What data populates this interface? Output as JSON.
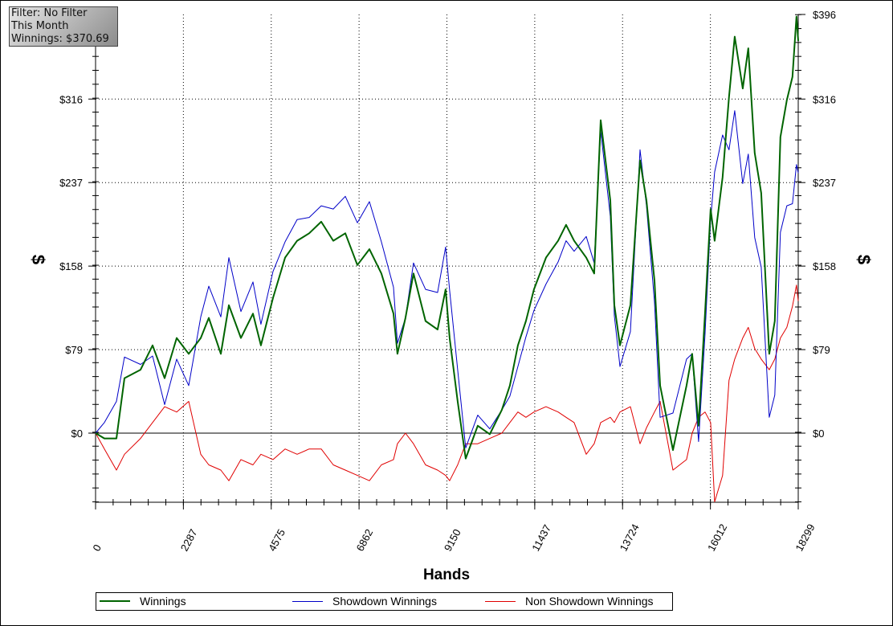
{
  "info_box": {
    "filter": "Filter: No Filter",
    "period": "This Month",
    "winnings": "Winnings: $370.69"
  },
  "chart_data": {
    "type": "line",
    "xlabel": "Hands",
    "ylabel": "$",
    "xlim": [
      0,
      18299
    ],
    "ylim": [
      -65,
      396
    ],
    "x_ticks": [
      0,
      2287,
      4575,
      6862,
      9150,
      11437,
      13724,
      16012,
      18299
    ],
    "y_ticks": [
      0,
      79,
      158,
      237,
      316,
      396
    ],
    "y_tick_labels": [
      "$0",
      "$79",
      "$158",
      "$237",
      "$316",
      "$396"
    ],
    "grid": true,
    "legend": "bottom",
    "x": [
      0,
      230,
      544,
      753,
      1171,
      1485,
      1798,
      2112,
      2425,
      2739,
      2948,
      3262,
      3471,
      3785,
      4098,
      4307,
      4621,
      4935,
      5249,
      5562,
      5876,
      6190,
      6503,
      6817,
      7131,
      7444,
      7758,
      7862,
      8071,
      8280,
      8594,
      8907,
      9117,
      9221,
      9430,
      9639,
      9953,
      10267,
      10580,
      10789,
      10999,
      11208,
      11417,
      11731,
      12045,
      12254,
      12463,
      12777,
      12986,
      13154,
      13405,
      13510,
      13656,
      13928,
      14179,
      14346,
      14555,
      14702,
      15036,
      15390,
      15536,
      15704,
      15871,
      16017,
      16121,
      16330,
      16497,
      16644,
      16853,
      16999,
      17166,
      17334,
      17543,
      17689,
      17835,
      18003,
      18149,
      18254,
      18299
    ],
    "series": [
      {
        "name": "Winnings",
        "color": "#006400",
        "values": [
          0,
          -5,
          -5,
          52,
          60,
          83,
          52,
          90,
          75,
          90,
          109,
          75,
          121,
          90,
          113,
          83,
          128,
          166,
          182,
          189,
          200,
          182,
          189,
          159,
          174,
          151,
          113,
          75,
          109,
          151,
          106,
          98,
          136,
          90,
          30,
          -24,
          7,
          -1,
          22,
          45,
          83,
          106,
          136,
          166,
          182,
          197,
          182,
          166,
          151,
          296,
          220,
          121,
          83,
          121,
          258,
          220,
          144,
          45,
          -16,
          45,
          75,
          7,
          113,
          212,
          182,
          242,
          318,
          375,
          326,
          364,
          265,
          227,
          75,
          106,
          280,
          315,
          337,
          394,
          371
        ]
      },
      {
        "name": "Showdown Winnings",
        "color": "#0000c8",
        "values": [
          0,
          10,
          30,
          72,
          65,
          73,
          27,
          70,
          45,
          110,
          139,
          110,
          166,
          115,
          143,
          103,
          153,
          181,
          202,
          204,
          215,
          212,
          224,
          199,
          219,
          181,
          138,
          85,
          109,
          161,
          136,
          133,
          176,
          135,
          60,
          -14,
          17,
          4,
          22,
          35,
          63,
          91,
          116,
          141,
          162,
          182,
          172,
          186,
          161,
          286,
          205,
          111,
          63,
          96,
          268,
          215,
          124,
          15,
          19,
          70,
          75,
          -8,
          93,
          202,
          247,
          282,
          268,
          305,
          236,
          264,
          185,
          157,
          15,
          36,
          190,
          215,
          217,
          254,
          246
        ]
      },
      {
        "name": "Non Showdown Winnings",
        "color": "#e00000",
        "values": [
          0,
          -15,
          -35,
          -20,
          -5,
          10,
          25,
          20,
          30,
          -20,
          -30,
          -35,
          -45,
          -25,
          -30,
          -20,
          -25,
          -15,
          -20,
          -15,
          -15,
          -30,
          -35,
          -40,
          -45,
          -30,
          -25,
          -10,
          0,
          -10,
          -30,
          -35,
          -40,
          -45,
          -30,
          -10,
          -10,
          -5,
          0,
          10,
          20,
          15,
          20,
          25,
          20,
          15,
          10,
          -20,
          -10,
          10,
          15,
          10,
          20,
          25,
          -10,
          5,
          20,
          30,
          -35,
          -25,
          0,
          15,
          20,
          10,
          -65,
          -40,
          50,
          70,
          90,
          100,
          80,
          70,
          60,
          70,
          90,
          100,
          120,
          140,
          125
        ]
      }
    ]
  }
}
